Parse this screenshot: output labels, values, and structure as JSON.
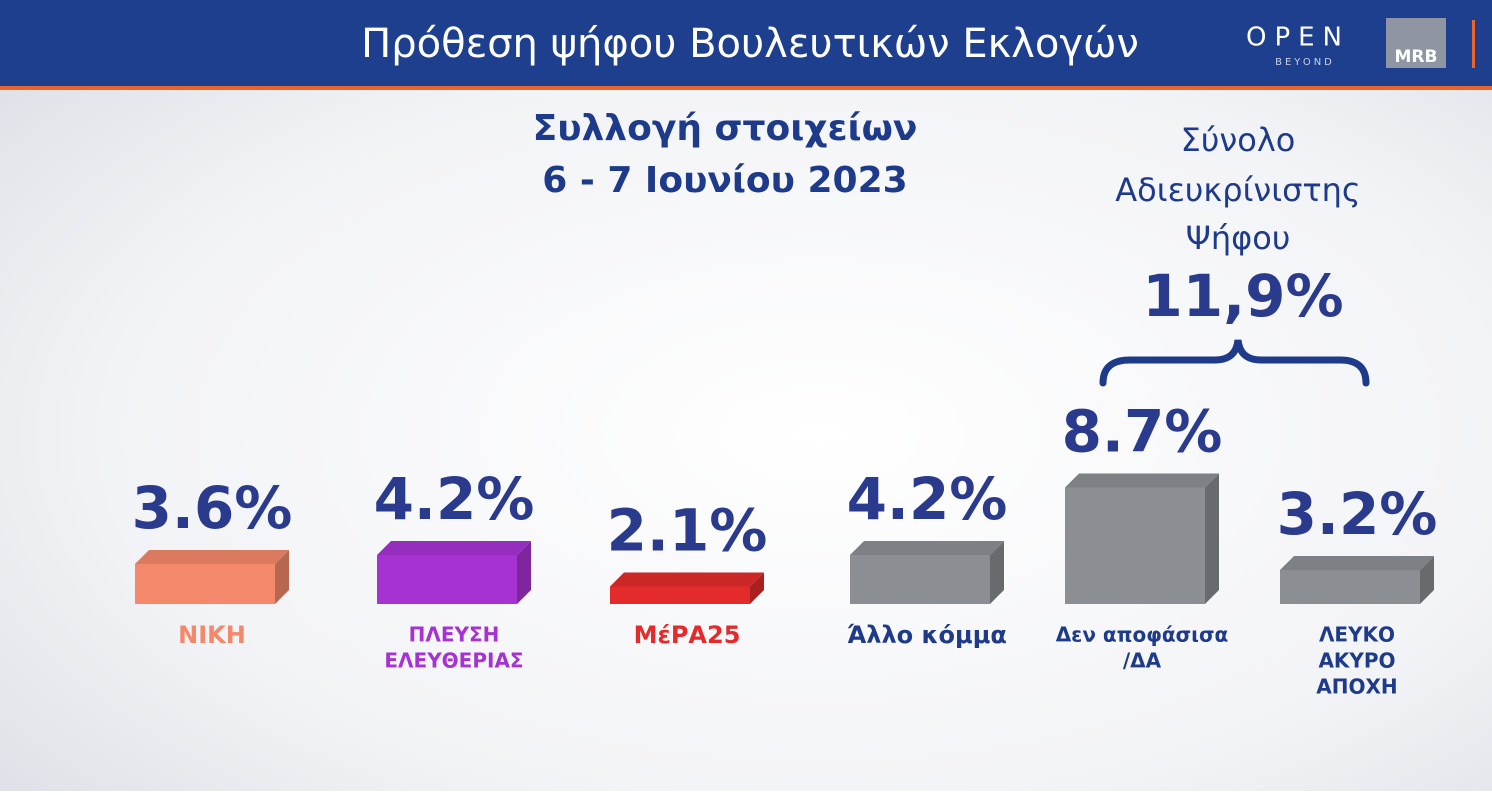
{
  "chart_data": {
    "type": "bar",
    "title": "Πρόθεση ψήφου Βουλευτικών Εκλογών",
    "subtitle": [
      "Συλλογή στοιχείων",
      "6 - 7 Ιουνίου 2023"
    ],
    "brand": {
      "channel": "OPEN",
      "channel_tag": "BEYOND",
      "pollster": "MRB"
    },
    "categories": [
      [
        "ΝΙΚΗ"
      ],
      [
        "ΠΛΕΥΣΗ",
        "ΕΛΕΥΘΕΡΙΑΣ"
      ],
      [
        "ΜέΡΑ25"
      ],
      [
        "Άλλο κόμμα"
      ],
      [
        "Δεν αποφάσισα",
        "/ΔΑ"
      ],
      [
        "ΛΕΥΚΟ",
        "ΑΚΥΡΟ",
        "ΑΠΟΧΗ"
      ]
    ],
    "values": [
      3.6,
      4.2,
      2.1,
      4.2,
      8.7,
      3.2
    ],
    "value_labels": [
      "3.6%",
      "4.2%",
      "2.1%",
      "4.2%",
      "8.7%",
      "3.2%"
    ],
    "colors": [
      "#f4886a",
      "#a632d2",
      "#e32b2b",
      "#8b8e93",
      "#8b8e93",
      "#8b8e93"
    ],
    "ylim": [
      0,
      10
    ],
    "annotation": {
      "text": [
        "Σύνολο",
        "Αδιευκρίνιστης",
        "Ψήφου"
      ],
      "value": 11.9,
      "label": "11,9%"
    }
  }
}
